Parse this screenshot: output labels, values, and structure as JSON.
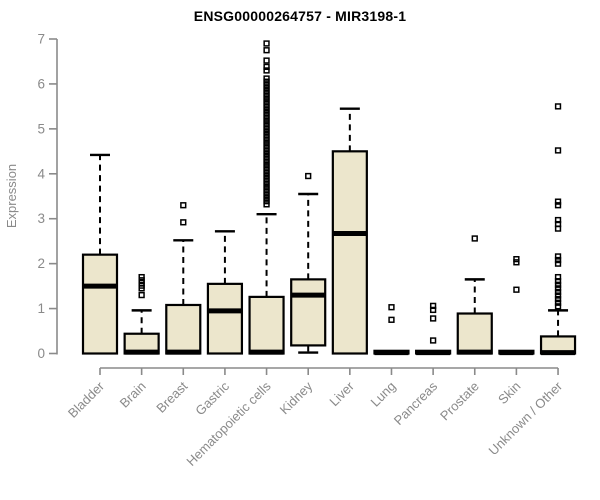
{
  "chart_data": {
    "type": "boxplot",
    "title": "ENSG00000264757 - MIR3198-1",
    "ylabel": "Expression",
    "xlabel": "",
    "ylim": [
      0,
      7
    ],
    "yticks": [
      0,
      1,
      2,
      3,
      4,
      5,
      6,
      7
    ],
    "grid": false,
    "legend": "none",
    "colors": {
      "box_fill": "#ece6cc",
      "box_border": "#000000",
      "median": "#000000",
      "whisker": "#000000",
      "outlier": "#000000",
      "axis": "#8a8a8a",
      "tick_label": "#8a8a8a",
      "title": "#000000",
      "background": "#ffffff"
    },
    "categories": [
      "Bladder",
      "Brain",
      "Breast",
      "Gastric",
      "Hematopoietic cells",
      "Kidney",
      "Liver",
      "Lung",
      "Pancreas",
      "Prostate",
      "Skin",
      "Unknown / Other"
    ],
    "boxes": [
      {
        "label": "Bladder",
        "whisker_low": 0,
        "q1": 0,
        "median": 1.5,
        "q3": 2.2,
        "whisker_high": 4.42,
        "outliers": []
      },
      {
        "label": "Brain",
        "whisker_low": 0,
        "q1": 0,
        "median": 0.03,
        "q3": 0.44,
        "whisker_high": 0.96,
        "outliers": [
          1.3,
          1.45,
          1.51,
          1.57,
          1.63,
          1.7
        ]
      },
      {
        "label": "Breast",
        "whisker_low": 0,
        "q1": 0,
        "median": 0.03,
        "q3": 1.08,
        "whisker_high": 2.52,
        "outliers": [
          2.92,
          3.3
        ]
      },
      {
        "label": "Gastric",
        "whisker_low": 0,
        "q1": 0,
        "median": 0.95,
        "q3": 1.55,
        "whisker_high": 2.72,
        "outliers": []
      },
      {
        "label": "Hematopoietic cells",
        "whisker_low": 0,
        "q1": 0,
        "median": 0.03,
        "q3": 1.26,
        "whisker_high": 3.1,
        "outliers": [
          3.32,
          3.39,
          3.46,
          3.53,
          3.6,
          3.67,
          3.74,
          3.81,
          3.88,
          3.95,
          4.02,
          4.09,
          4.16,
          4.23,
          4.3,
          4.37,
          4.44,
          4.51,
          4.58,
          4.65,
          4.72,
          4.79,
          4.86,
          4.93,
          5.0,
          5.07,
          5.14,
          5.21,
          5.28,
          5.35,
          5.42,
          5.49,
          5.56,
          5.63,
          5.7,
          5.77,
          5.84,
          5.91,
          5.98,
          6.05,
          6.12,
          6.3,
          6.38,
          6.52,
          6.75,
          6.9
        ]
      },
      {
        "label": "Kidney",
        "whisker_low": 0.02,
        "q1": 0.18,
        "median": 1.3,
        "q3": 1.65,
        "whisker_high": 3.55,
        "outliers": [
          3.95
        ]
      },
      {
        "label": "Liver",
        "whisker_low": 0,
        "q1": 0,
        "median": 2.67,
        "q3": 4.5,
        "whisker_high": 5.45,
        "outliers": []
      },
      {
        "label": "Lung",
        "whisker_low": 0,
        "q1": 0,
        "median": 0.02,
        "q3": 0.06,
        "whisker_high": 0.06,
        "outliers": [
          0.75,
          1.03
        ]
      },
      {
        "label": "Pancreas",
        "whisker_low": 0,
        "q1": 0,
        "median": 0.02,
        "q3": 0.06,
        "whisker_high": 0.06,
        "outliers": [
          0.29,
          0.78,
          0.97,
          1.06
        ]
      },
      {
        "label": "Prostate",
        "whisker_low": 0,
        "q1": 0,
        "median": 0.03,
        "q3": 0.89,
        "whisker_high": 1.65,
        "outliers": [
          2.56
        ]
      },
      {
        "label": "Skin",
        "whisker_low": 0,
        "q1": 0,
        "median": 0.02,
        "q3": 0.06,
        "whisker_high": 0.06,
        "outliers": [
          1.42,
          2.03,
          2.1
        ]
      },
      {
        "label": "Unknown / Other",
        "whisker_low": 0,
        "q1": 0,
        "median": 0.02,
        "q3": 0.38,
        "whisker_high": 0.96,
        "outliers": [
          1.05,
          1.13,
          1.21,
          1.29,
          1.37,
          1.45,
          1.53,
          1.61,
          1.7,
          2.0,
          2.08,
          2.16,
          2.78,
          2.88,
          2.97,
          3.3,
          3.38,
          4.52,
          5.5
        ]
      }
    ]
  }
}
